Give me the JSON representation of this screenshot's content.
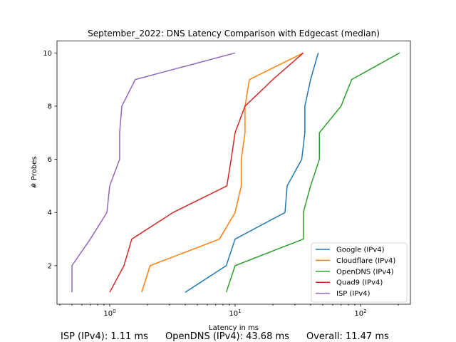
{
  "chart_data": {
    "type": "line",
    "title": "September_2022: DNS Latency Comparison with Edgecast (median)",
    "xlabel": "Latency in ms",
    "ylabel": "# Probes",
    "xscale": "log",
    "xlim": [
      0.38,
      250
    ],
    "ylim": [
      0.55,
      10.45
    ],
    "xticks": [
      {
        "value": 1,
        "base": "10",
        "exp": "0"
      },
      {
        "value": 10,
        "base": "10",
        "exp": "1"
      },
      {
        "value": 100,
        "base": "10",
        "exp": "2"
      }
    ],
    "yticks": [
      2,
      4,
      6,
      8,
      10
    ],
    "legend_position": "lower-right",
    "series": [
      {
        "name": "Google (IPv4)",
        "color": "#1f77b4",
        "points": [
          [
            4.0,
            1
          ],
          [
            8.5,
            2
          ],
          [
            10,
            3
          ],
          [
            25,
            4
          ],
          [
            26,
            5
          ],
          [
            34,
            6
          ],
          [
            36,
            7
          ],
          [
            36,
            8
          ],
          [
            40,
            9
          ],
          [
            46,
            10
          ]
        ]
      },
      {
        "name": "Cloudflare (IPv4)",
        "color": "#ff7f0e",
        "points": [
          [
            1.8,
            1
          ],
          [
            2.1,
            2
          ],
          [
            7.5,
            3
          ],
          [
            10,
            4
          ],
          [
            11.2,
            5
          ],
          [
            11.2,
            6
          ],
          [
            12,
            7
          ],
          [
            12,
            8
          ],
          [
            13,
            9
          ],
          [
            35,
            10
          ]
        ]
      },
      {
        "name": "OpenDNS (IPv4)",
        "color": "#2ca02c",
        "points": [
          [
            8.5,
            1
          ],
          [
            10,
            2
          ],
          [
            35,
            3
          ],
          [
            35,
            4
          ],
          [
            40,
            5
          ],
          [
            47,
            6
          ],
          [
            47,
            7
          ],
          [
            70,
            8
          ],
          [
            85,
            9
          ],
          [
            205,
            10
          ]
        ]
      },
      {
        "name": "Quad9 (IPv4)",
        "color": "#d62728",
        "points": [
          [
            1.0,
            1
          ],
          [
            1.3,
            2
          ],
          [
            1.5,
            3
          ],
          [
            3.2,
            4
          ],
          [
            8.6,
            5
          ],
          [
            9.3,
            6
          ],
          [
            10,
            7
          ],
          [
            12,
            8
          ],
          [
            20,
            9
          ],
          [
            35,
            10
          ]
        ]
      },
      {
        "name": "ISP (IPv4)",
        "color": "#9467bd",
        "points": [
          [
            0.5,
            1
          ],
          [
            0.5,
            2
          ],
          [
            0.7,
            3
          ],
          [
            0.95,
            4
          ],
          [
            1.0,
            5
          ],
          [
            1.2,
            6
          ],
          [
            1.2,
            7
          ],
          [
            1.25,
            8
          ],
          [
            1.6,
            9
          ],
          [
            10,
            10
          ]
        ]
      }
    ]
  },
  "footer": {
    "isp": "ISP (IPv4): 1.11 ms",
    "opendns": "OpenDNS (IPv4): 43.68 ms",
    "overall": "Overall: 11.47 ms"
  }
}
